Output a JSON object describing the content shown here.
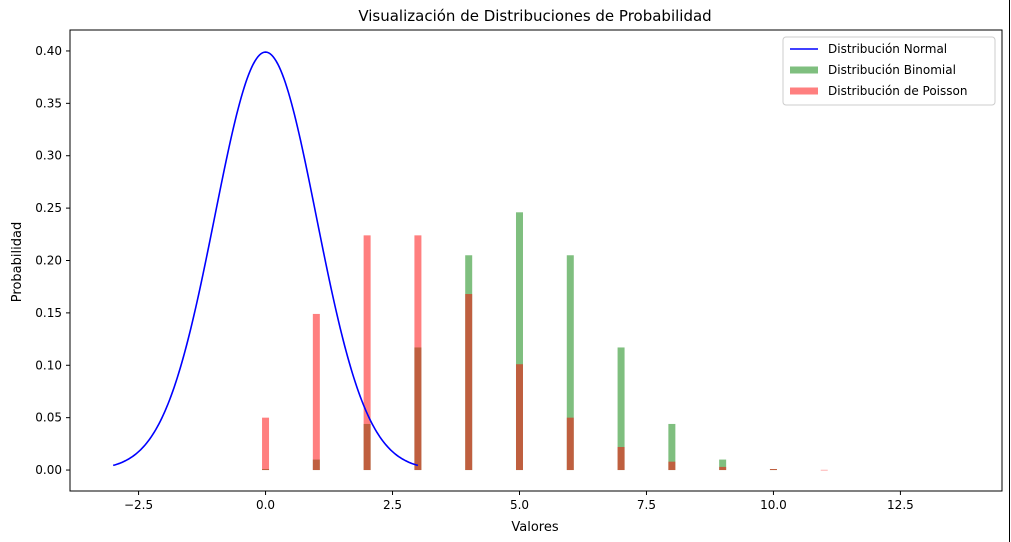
{
  "chart_data": {
    "type": "line",
    "title": "Visualización de Distribuciones de Probabilidad",
    "xlabel": "Valores",
    "ylabel": "Probabilidad",
    "xlim": [
      -3.85,
      14.5
    ],
    "ylim": [
      -0.02,
      0.42
    ],
    "xticks": [
      -2.5,
      0.0,
      2.5,
      5.0,
      7.5,
      10.0,
      12.5
    ],
    "xtick_labels": [
      "−2.5",
      "0.0",
      "2.5",
      "5.0",
      "7.5",
      "10.0",
      "12.5"
    ],
    "yticks": [
      0.0,
      0.05,
      0.1,
      0.15,
      0.2,
      0.25,
      0.3,
      0.35,
      0.4
    ],
    "ytick_labels": [
      "0.00",
      "0.05",
      "0.10",
      "0.15",
      "0.20",
      "0.25",
      "0.30",
      "0.35",
      "0.40"
    ],
    "grid": false,
    "legend_position": "top-right",
    "series": [
      {
        "name": "Distribución Normal",
        "type": "line",
        "color": "#0000ff",
        "distribution": "normal",
        "mean": 0,
        "std": 1,
        "x_range": [
          -3,
          3
        ]
      },
      {
        "name": "Distribución Binomial",
        "type": "bar",
        "color": "#008000",
        "opacity": 0.5,
        "x": [
          0,
          1,
          2,
          3,
          4,
          5,
          6,
          7,
          8,
          9,
          10
        ],
        "values": [
          0.001,
          0.01,
          0.044,
          0.117,
          0.205,
          0.246,
          0.205,
          0.117,
          0.044,
          0.01,
          0.001
        ]
      },
      {
        "name": "Distribución de Poisson",
        "type": "bar",
        "color": "#ff0000",
        "opacity": 0.5,
        "x": [
          0,
          1,
          2,
          3,
          4,
          5,
          6,
          7,
          8,
          9,
          10,
          11
        ],
        "values": [
          0.05,
          0.149,
          0.224,
          0.224,
          0.168,
          0.101,
          0.05,
          0.022,
          0.008,
          0.003,
          0.001,
          0.0002
        ]
      }
    ]
  }
}
